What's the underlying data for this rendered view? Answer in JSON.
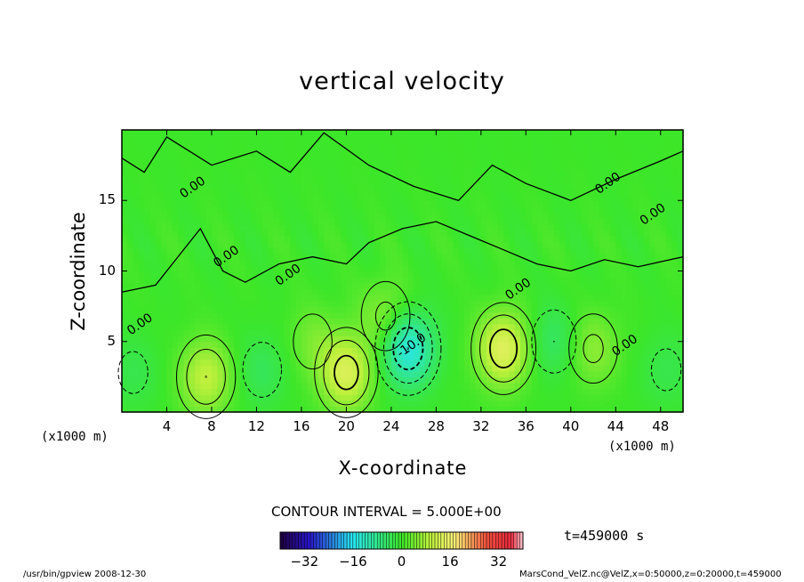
{
  "chart_data": {
    "type": "heatmap",
    "title": "vertical velocity",
    "xlabel": "X-coordinate",
    "ylabel": "Z-coordinate",
    "x_unit_left": "(x1000 m)",
    "x_unit_right": "(x1000 m)",
    "xlim": [
      0,
      50
    ],
    "ylim": [
      0,
      20
    ],
    "x_ticks": [
      "4",
      "8",
      "12",
      "16",
      "20",
      "24",
      "28",
      "32",
      "36",
      "40",
      "44",
      "48"
    ],
    "y_ticks": [
      "5",
      "10",
      "15"
    ],
    "contour_interval_label": "CONTOUR INTERVAL = 5.000E+00",
    "contour_labels": [
      {
        "text": "0.00",
        "x": 6.5,
        "z": 15.7
      },
      {
        "text": "0.00",
        "x": 9.5,
        "z": 10.8
      },
      {
        "text": "0.00",
        "x": 15.0,
        "z": 9.5
      },
      {
        "text": "0.00",
        "x": 1.8,
        "z": 6.0
      },
      {
        "text": "-10.0",
        "x": 26.0,
        "z": 4.5
      },
      {
        "text": "0.00",
        "x": 35.5,
        "z": 8.5
      },
      {
        "text": "0.00",
        "x": 45.0,
        "z": 4.5
      },
      {
        "text": "0.00",
        "x": 43.5,
        "z": 16.0
      },
      {
        "text": "0.00",
        "x": 47.5,
        "z": 13.8
      }
    ],
    "features": [
      {
        "kind": "updraft",
        "x": 7.5,
        "z": 2.5,
        "peak": 10
      },
      {
        "kind": "downdraft",
        "x": 12.5,
        "z": 3.0,
        "peak": -4
      },
      {
        "kind": "updraft",
        "x": 20.0,
        "z": 2.8,
        "peak": 13
      },
      {
        "kind": "updraft",
        "x": 23.5,
        "z": 6.8,
        "peak": 6
      },
      {
        "kind": "downdraft",
        "x": 25.5,
        "z": 4.5,
        "peak": -15
      },
      {
        "kind": "updraft",
        "x": 34.0,
        "z": 4.5,
        "peak": 14
      },
      {
        "kind": "downdraft",
        "x": 38.5,
        "z": 5.0,
        "peak": -5
      },
      {
        "kind": "updraft",
        "x": 42.0,
        "z": 4.5,
        "peak": 6
      },
      {
        "kind": "downdraft",
        "x": 48.5,
        "z": 3.0,
        "peak": -3
      },
      {
        "kind": "downdraft",
        "x": 1.0,
        "z": 2.8,
        "peak": -3
      },
      {
        "kind": "updraft",
        "x": 17.0,
        "z": 5.0,
        "peak": 4
      }
    ],
    "colorbar": {
      "ticks": [
        "-32",
        "-16",
        "0",
        "16",
        "32"
      ],
      "min": -40,
      "max": 40
    },
    "time_label": "t=459000 s"
  },
  "footer": {
    "program": "/usr/bin/gpview   2008-12-30",
    "datafile": "MarsCond_VelZ.nc@VelZ,x=0:50000,z=0:20000,t=459000"
  }
}
